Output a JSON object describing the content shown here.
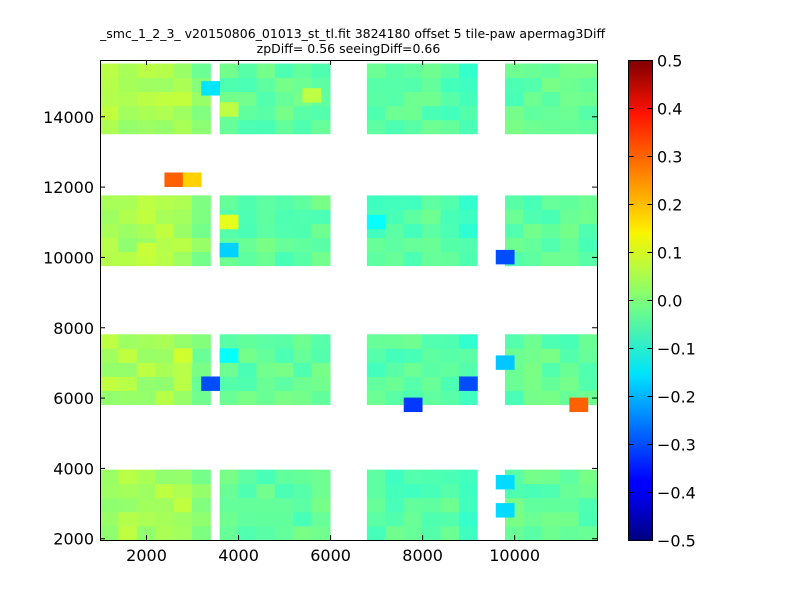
{
  "chart_data": {
    "type": "heatmap",
    "title_line1": "_smc_1_2_3_ v20150806_01013_st_tl.fit 3824180 offset 5 tile-paw apermag3Diff",
    "title_line2": "zpDiff= 0.56 seeingDiff=0.66",
    "xlim": [
      1000,
      11800
    ],
    "ylim": [
      1950,
      15600
    ],
    "x_ticks": [
      2000,
      4000,
      6000,
      8000,
      10000
    ],
    "y_ticks": [
      2000,
      4000,
      6000,
      8000,
      10000,
      12000,
      14000
    ],
    "cell_size": [
      400,
      400
    ],
    "colorbar": {
      "colormap": "jet",
      "range": [
        -0.5,
        0.5
      ],
      "ticks": [
        "0.5",
        "0.4",
        "0.3",
        "0.2",
        "0.1",
        "0.0",
        "−0.1",
        "−0.2",
        "−0.3",
        "−0.4",
        "−0.5"
      ]
    },
    "default_values": {
      "col_a": 0.04,
      "col_b": -0.03,
      "col_c": -0.04,
      "col_d": -0.06,
      "col_e": 0.0
    },
    "notable_cells": [
      {
        "x": 2400,
        "y": 12000,
        "value": 0.28
      },
      {
        "x": 2800,
        "y": 12000,
        "value": 0.17
      },
      {
        "x": 9600,
        "y": 9800,
        "value": -0.3
      },
      {
        "x": 3200,
        "y": 6200,
        "value": -0.3
      },
      {
        "x": 8800,
        "y": 6200,
        "value": -0.3
      },
      {
        "x": 7600,
        "y": 5600,
        "value": -0.32
      },
      {
        "x": 11200,
        "y": 5600,
        "value": 0.28
      },
      {
        "x": 3200,
        "y": 14600,
        "value": -0.15
      },
      {
        "x": 3600,
        "y": 10000,
        "value": -0.17
      },
      {
        "x": 9600,
        "y": 6800,
        "value": -0.18
      },
      {
        "x": 9600,
        "y": 3400,
        "value": -0.16
      },
      {
        "x": 9600,
        "y": 2600,
        "value": -0.16
      },
      {
        "x": 3600,
        "y": 7000,
        "value": -0.12
      },
      {
        "x": 6800,
        "y": 10800,
        "value": -0.12
      },
      {
        "x": 2600,
        "y": 7000,
        "value": 0.08
      },
      {
        "x": 3600,
        "y": 10800,
        "value": 0.1
      },
      {
        "x": 3600,
        "y": 14000,
        "value": 0.06
      },
      {
        "x": 1800,
        "y": 10000,
        "value": 0.07
      },
      {
        "x": 5400,
        "y": 14400,
        "value": 0.06
      }
    ]
  }
}
